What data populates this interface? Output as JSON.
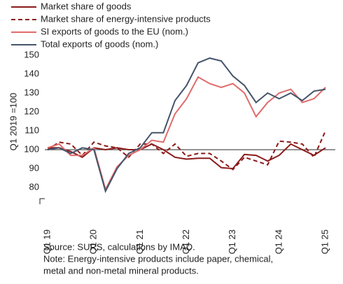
{
  "chart_data": {
    "type": "line",
    "y_label": "Q1 2019 =100",
    "categories": [
      "Q1 19",
      null,
      null,
      null,
      "Q1 20",
      null,
      null,
      null,
      "Q1 21",
      null,
      null,
      null,
      "Q1 22",
      null,
      null,
      null,
      "Q1 23",
      null,
      null,
      null,
      "Q1 24",
      null,
      null,
      null,
      "Q1 25"
    ],
    "series": [
      {
        "name": "Market share of goods",
        "color": "#8b1a1a",
        "dashed": false,
        "values": [
          101,
          101,
          99,
          96,
          101,
          100,
          101,
          100,
          100,
          103,
          100,
          96,
          95,
          95.5,
          95.5,
          90.5,
          90,
          97.5,
          97,
          94,
          97,
          103,
          100,
          97,
          101
        ]
      },
      {
        "name": "Market share of energy-intensive products",
        "color": "#8b1a1a",
        "dashed": true,
        "values": [
          100,
          104,
          103,
          97,
          104,
          102,
          101,
          96,
          103,
          103,
          98,
          103,
          96.5,
          98,
          98,
          94,
          89.5,
          96,
          94,
          92,
          104.5,
          104,
          103,
          96,
          110
        ]
      },
      {
        "name": "SI exports of goods to the EU (nom.)",
        "color": "#e06b6b",
        "dashed": false,
        "values": [
          101,
          103,
          97,
          97,
          101,
          79,
          91,
          97,
          100,
          105,
          104,
          119,
          127,
          138.5,
          135,
          133,
          135,
          130,
          117.5,
          125,
          130,
          132,
          125,
          127,
          133
        ]
      },
      {
        "name": "Total exports of goods (nom.)",
        "color": "#44546a",
        "dashed": false,
        "values": [
          100,
          101,
          98,
          101,
          100,
          78,
          90,
          98,
          101,
          109,
          109,
          126,
          134,
          146,
          148.5,
          147,
          139,
          134,
          125,
          130,
          127,
          130,
          126,
          131,
          132
        ]
      }
    ],
    "ylim": [
      70,
      150
    ],
    "yticks": [
      80,
      90,
      100,
      110,
      120,
      130,
      140,
      150
    ],
    "hline": 100,
    "grid": false,
    "notes": [
      "Source: SURS, calculations by IMAD.",
      "Note: Energy-intensive products include paper, chemical,",
      "metal and non-metal mineral products."
    ]
  }
}
